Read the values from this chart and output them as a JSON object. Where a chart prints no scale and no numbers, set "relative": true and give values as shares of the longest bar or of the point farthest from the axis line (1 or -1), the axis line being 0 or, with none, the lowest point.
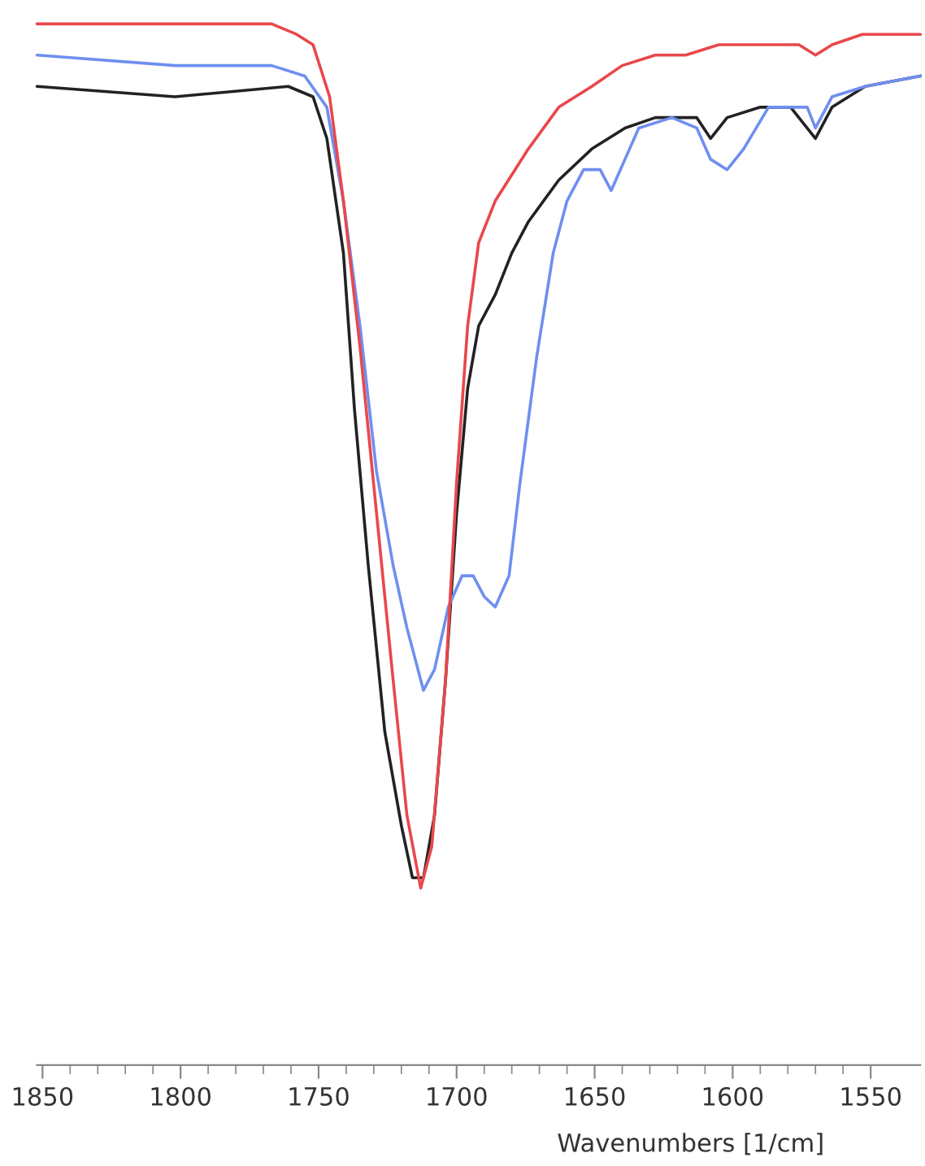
{
  "chart_data": {
    "type": "line",
    "relative": true,
    "xlabel": "Wavenumbers [1/cm]",
    "xlim": [
      1852,
      1532
    ],
    "xticks": [
      1850,
      1800,
      1750,
      1700,
      1650,
      1600,
      1550,
      {
        "value": 1840,
        "label": null
      },
      {
        "value": 1830,
        "label": null
      },
      {
        "value": 1820,
        "label": null
      },
      {
        "value": 1810,
        "label": null
      },
      {
        "value": 1790,
        "label": null
      },
      {
        "value": 1780,
        "label": null
      },
      {
        "value": 1770,
        "label": null
      },
      {
        "value": 1760,
        "label": null
      },
      {
        "value": 1740,
        "label": null
      },
      {
        "value": 1730,
        "label": null
      },
      {
        "value": 1720,
        "label": null
      },
      {
        "value": 1710,
        "label": null
      },
      {
        "value": 1690,
        "label": null
      },
      {
        "value": 1680,
        "label": null
      },
      {
        "value": 1670,
        "label": null
      },
      {
        "value": 1660,
        "label": null
      },
      {
        "value": 1640,
        "label": null
      },
      {
        "value": 1630,
        "label": null
      },
      {
        "value": 1620,
        "label": null
      },
      {
        "value": 1610,
        "label": null
      },
      {
        "value": 1590,
        "label": null
      },
      {
        "value": 1580,
        "label": null
      },
      {
        "value": 1570,
        "label": null
      },
      {
        "value": 1560,
        "label": null
      }
    ],
    "tick_labels": "x",
    "grid": false,
    "series": [
      {
        "color": "#222222",
        "x": [
          1852,
          1802,
          1761,
          1752,
          1747,
          1741,
          1737,
          1732,
          1726,
          1720,
          1716,
          1712,
          1708,
          1704,
          1700,
          1696,
          1692,
          1686,
          1680,
          1674,
          1663,
          1651,
          1639,
          1628,
          1613,
          1608,
          1602,
          1590,
          1579,
          1570,
          1564,
          1552,
          1532
        ],
        "values": [
          0.94,
          0.93,
          0.94,
          0.93,
          0.89,
          0.78,
          0.63,
          0.48,
          0.32,
          0.23,
          0.18,
          0.18,
          0.24,
          0.37,
          0.53,
          0.65,
          0.71,
          0.74,
          0.78,
          0.81,
          0.85,
          0.88,
          0.9,
          0.91,
          0.91,
          0.89,
          0.91,
          0.92,
          0.92,
          0.89,
          0.92,
          0.94,
          0.95
        ]
      },
      {
        "color": "#6f8fef",
        "x": [
          1852,
          1802,
          1767,
          1755,
          1747,
          1741,
          1735,
          1729,
          1723,
          1718,
          1712,
          1708,
          1703,
          1698,
          1694,
          1690,
          1686,
          1681,
          1677,
          1671,
          1665,
          1660,
          1654,
          1648,
          1644,
          1639,
          1634,
          1622,
          1613,
          1608,
          1602,
          1596,
          1587,
          1579,
          1573,
          1570,
          1564,
          1552,
          1532
        ],
        "values": [
          0.97,
          0.96,
          0.96,
          0.95,
          0.92,
          0.83,
          0.71,
          0.57,
          0.48,
          0.42,
          0.36,
          0.38,
          0.44,
          0.47,
          0.47,
          0.45,
          0.44,
          0.47,
          0.56,
          0.68,
          0.78,
          0.83,
          0.86,
          0.86,
          0.84,
          0.87,
          0.9,
          0.91,
          0.9,
          0.87,
          0.86,
          0.88,
          0.92,
          0.92,
          0.92,
          0.9,
          0.93,
          0.94,
          0.95
        ]
      },
      {
        "color": "#e8484c",
        "x": [
          1852,
          1767,
          1758,
          1752,
          1746,
          1741,
          1735,
          1729,
          1723,
          1718,
          1713,
          1709,
          1704,
          1700,
          1696,
          1692,
          1686,
          1674,
          1663,
          1651,
          1640,
          1628,
          1617,
          1605,
          1593,
          1584,
          1576,
          1570,
          1564,
          1553,
          1532
        ],
        "values": [
          1.0,
          1.0,
          0.99,
          0.98,
          0.93,
          0.83,
          0.69,
          0.53,
          0.37,
          0.24,
          0.17,
          0.21,
          0.37,
          0.56,
          0.71,
          0.79,
          0.83,
          0.88,
          0.92,
          0.94,
          0.96,
          0.97,
          0.97,
          0.98,
          0.98,
          0.98,
          0.98,
          0.97,
          0.98,
          0.99,
          0.99
        ]
      }
    ]
  }
}
